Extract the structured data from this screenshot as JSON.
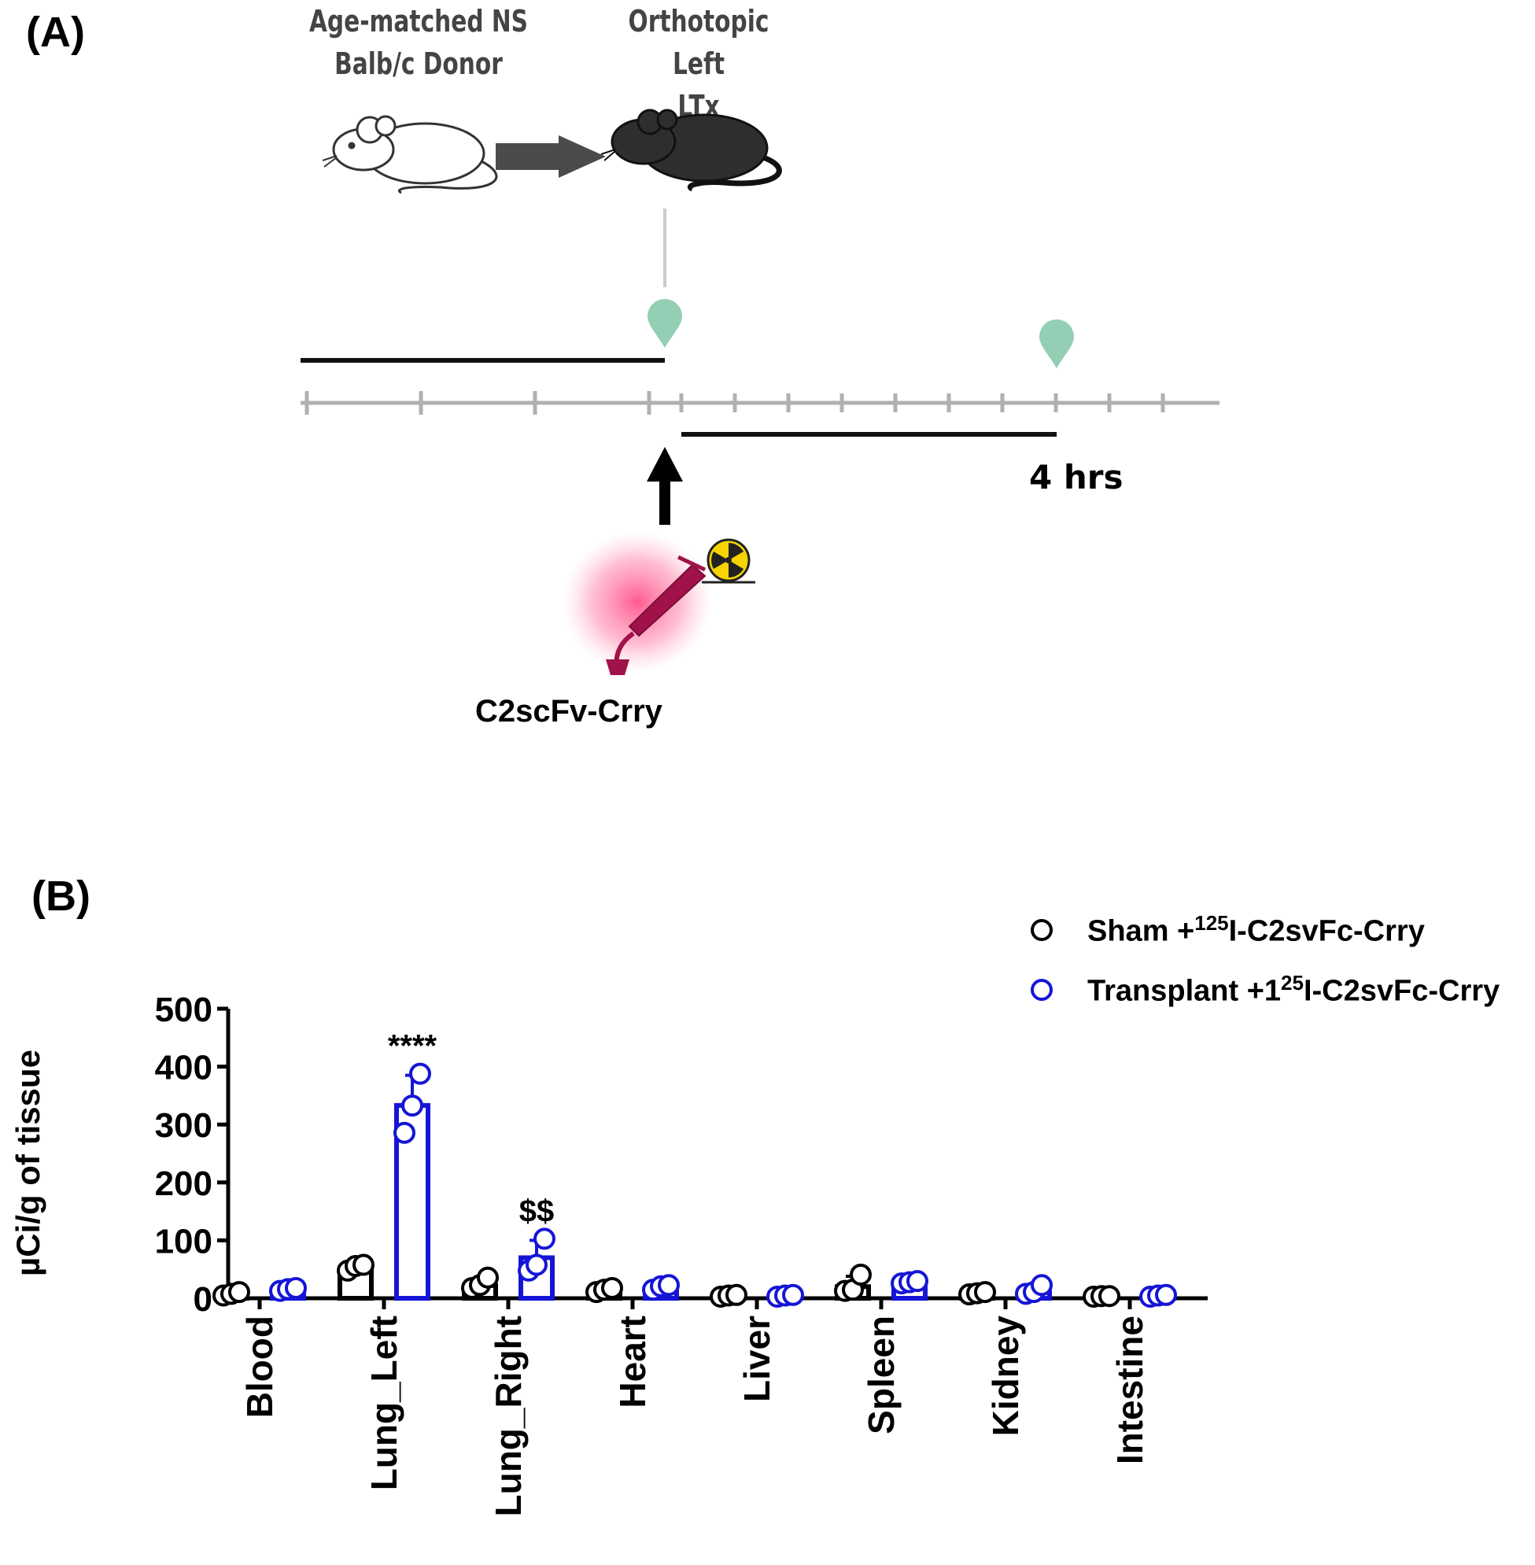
{
  "panel_a": {
    "label": "(A)",
    "donor_label_line1": "Age-matched NS",
    "donor_label_line2": "Balb/c  Donor",
    "recipient_label_line1": "Orthotopic Left",
    "recipient_label_line2": "LTx",
    "duration_label": "4 hrs",
    "drug_label": "C2scFv-Crry",
    "icons": [
      "white-mouse-icon",
      "black-mouse-icon",
      "right-arrow-icon",
      "up-arrow-icon",
      "map-pin-icon",
      "radioactive-icon",
      "syringe-icon"
    ],
    "colors": {
      "pin": "#93cfb4",
      "timeline": "#b0b0b0",
      "syringe": "#c2185b",
      "radiation": "#f5d400"
    }
  },
  "panel_b": {
    "label": "(B)",
    "legend": [
      {
        "prefix": "Sham +",
        "sup": "125",
        "suffix": "I-C2svFc-Crry",
        "color": "#000000"
      },
      {
        "prefix": "Transplant +1",
        "sup": "25",
        "suffix": "I-C2svFc-Crry",
        "color": "#1515d6"
      }
    ]
  },
  "chart_data": {
    "type": "bar",
    "title": "",
    "xlabel": "",
    "ylabel": "µCi/g of tissue",
    "ylim": [
      0,
      500
    ],
    "yticks": [
      0,
      100,
      200,
      300,
      400,
      500
    ],
    "categories": [
      "Blood",
      "Lung_Left",
      "Lung_Right",
      "Heart",
      "Liver",
      "Spleen",
      "Kidney",
      "Intestine"
    ],
    "series": [
      {
        "name": "Sham +125I-C2svFc-Crry",
        "color": "#000000",
        "values": [
          6,
          52,
          22,
          12,
          2,
          20,
          6,
          1
        ],
        "points": [
          [
            2,
            5,
            8
          ],
          [
            45,
            53,
            55
          ],
          [
            15,
            20,
            33
          ],
          [
            8,
            12,
            15
          ],
          [
            0,
            2,
            3
          ],
          [
            10,
            12,
            38
          ],
          [
            4,
            6,
            8
          ],
          [
            0,
            1,
            1
          ]
        ]
      },
      {
        "name": "Transplant +125I-C2svFc-Crry",
        "color": "#1515d6",
        "values": [
          12,
          333,
          70,
          18,
          2,
          25,
          12,
          2
        ],
        "points": [
          [
            10,
            13,
            15
          ],
          [
            283,
            330,
            385
          ],
          [
            45,
            55,
            100
          ],
          [
            12,
            18,
            20
          ],
          [
            0,
            2,
            3
          ],
          [
            23,
            25,
            27
          ],
          [
            5,
            8,
            20
          ],
          [
            0,
            2,
            3
          ]
        ]
      }
    ],
    "annotations": [
      {
        "category": "Lung_Left",
        "series": 1,
        "text": "****"
      },
      {
        "category": "Lung_Right",
        "series": 1,
        "text": "$$"
      }
    ]
  }
}
